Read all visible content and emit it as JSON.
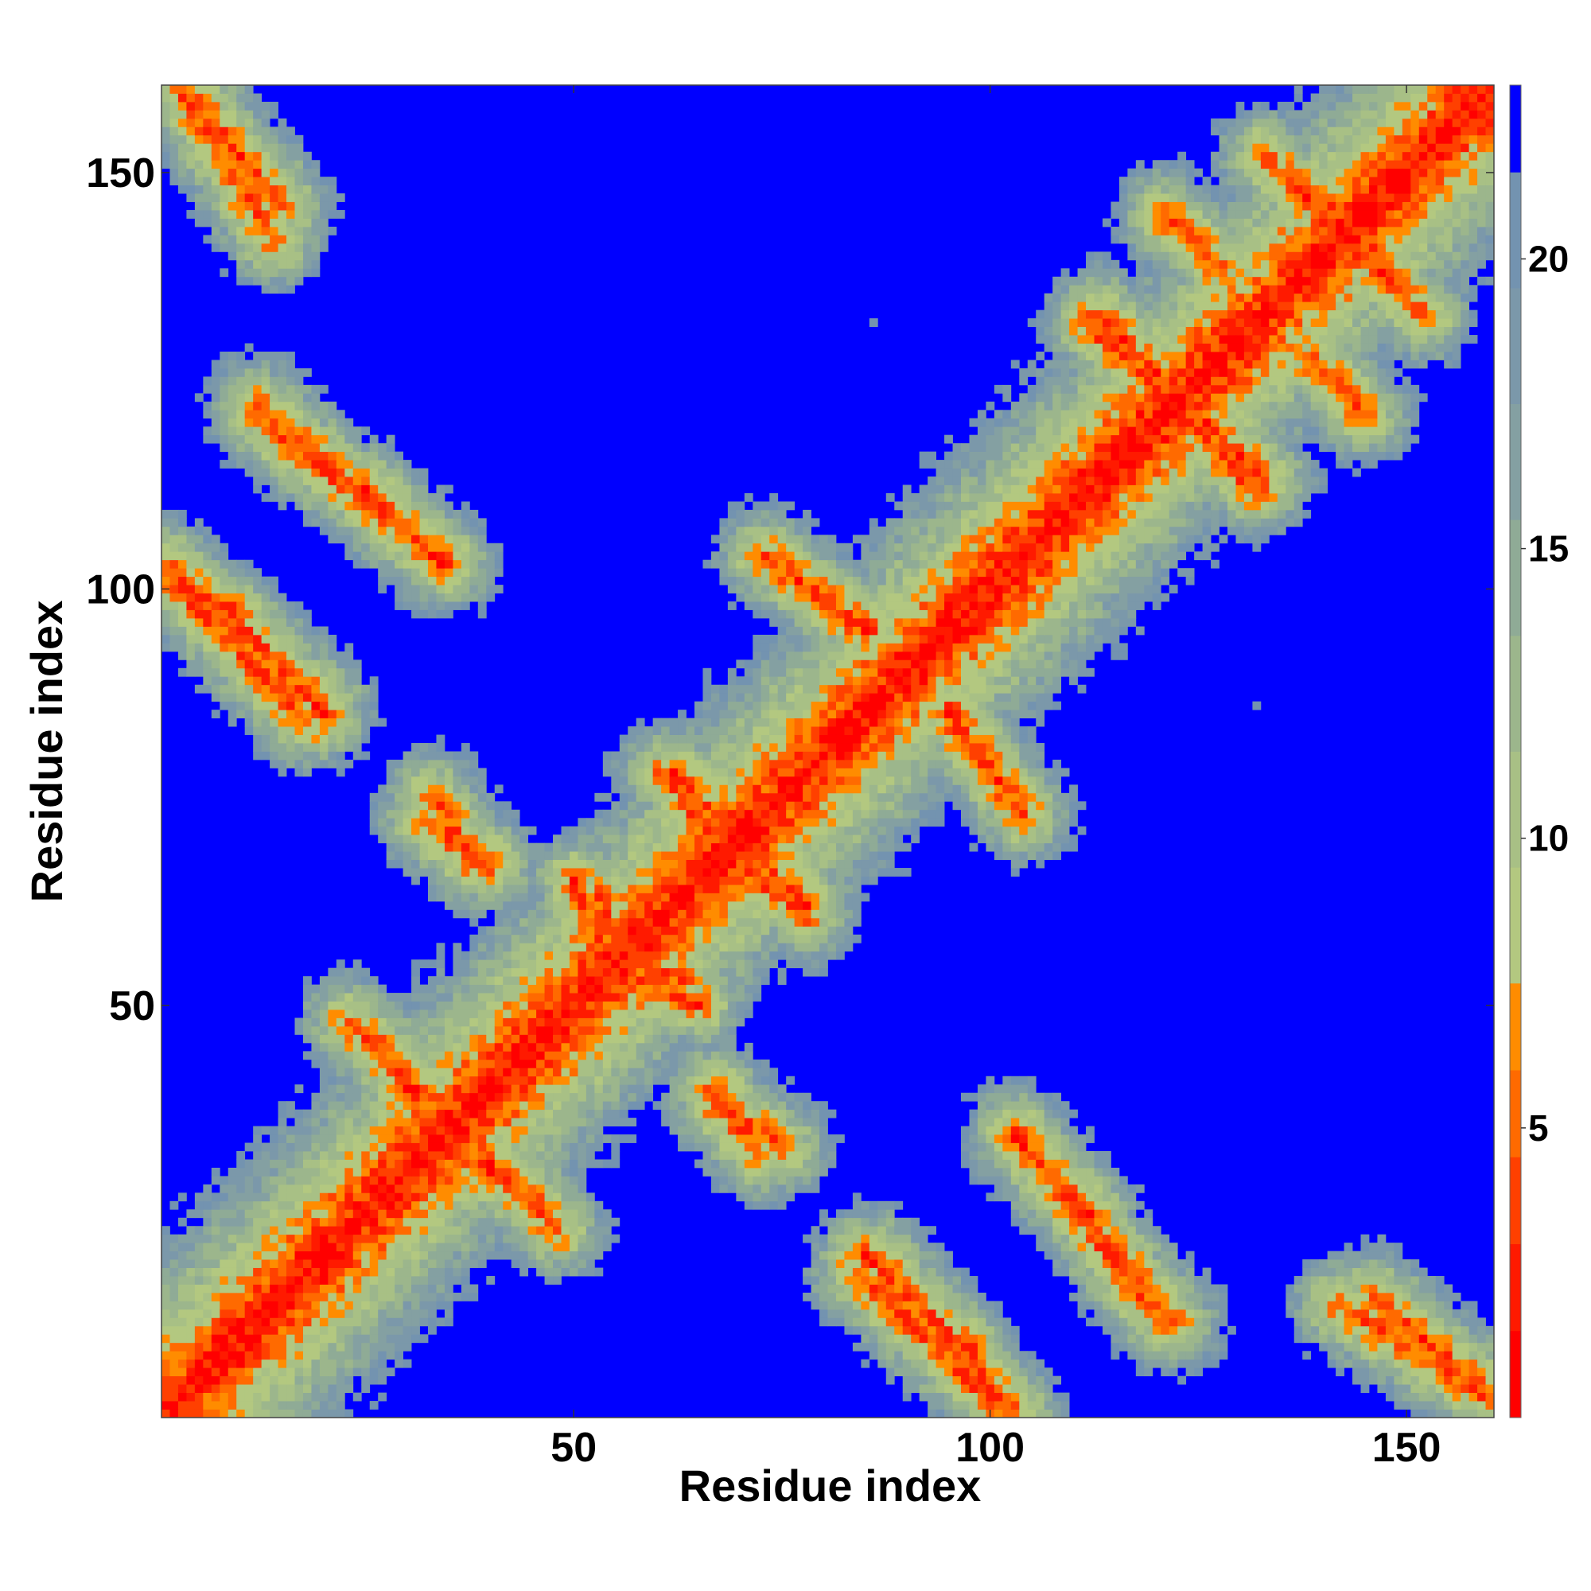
{
  "chart_data": {
    "type": "heatmap",
    "title": "",
    "xlabel": "Residue index",
    "ylabel": "Residue index",
    "x_range": [
      1,
      160
    ],
    "y_range": [
      1,
      160
    ],
    "x_ticks": [
      50,
      100,
      150
    ],
    "y_ticks": [
      50,
      100,
      150
    ],
    "n_residues": 160,
    "value_range": [
      0,
      23
    ],
    "colorbar": {
      "ticks": [
        5,
        10,
        15,
        20
      ],
      "levels": [
        {
          "max": 1.5,
          "color": "#ff0000"
        },
        {
          "max": 3.0,
          "color": "#ff1a00"
        },
        {
          "max": 4.5,
          "color": "#ff4000"
        },
        {
          "max": 6.0,
          "color": "#ff6a00"
        },
        {
          "max": 7.5,
          "color": "#ff8c00"
        },
        {
          "max": 9.5,
          "color": "#b3c880"
        },
        {
          "max": 11.5,
          "color": "#a8c085"
        },
        {
          "max": 13.5,
          "color": "#9cb68c"
        },
        {
          "max": 15.5,
          "color": "#8fab96"
        },
        {
          "max": 17.5,
          "color": "#84a0a2"
        },
        {
          "max": 19.5,
          "color": "#7b98aa"
        },
        {
          "max": 21.5,
          "color": "#7393b0"
        },
        {
          "max": 23.0,
          "color": "#0000ff"
        }
      ]
    },
    "structure": {
      "description_of_encoding": "",
      "diagonal_value": 1.0,
      "far_value": 23.0,
      "contact_bands": [
        {
          "i0": 3,
          "j0": 160,
          "i1": 15,
          "j1": 146
        },
        {
          "i0": 14,
          "j0": 119,
          "i1": 35,
          "j1": 103
        },
        {
          "i0": 1,
          "j0": 103,
          "i1": 20,
          "j1": 86
        },
        {
          "i0": 20,
          "j0": 85,
          "i1": 8,
          "j1": 98
        },
        {
          "i0": 33,
          "j0": 75,
          "i1": 38,
          "j1": 67
        },
        {
          "i0": 23,
          "j0": 48,
          "i1": 31,
          "j1": 40
        },
        {
          "i0": 30,
          "j0": 40,
          "i1": 40,
          "j1": 29
        },
        {
          "i0": 42,
          "j0": 30,
          "i1": 48,
          "j1": 23
        },
        {
          "i0": 53,
          "j0": 63,
          "i1": 58,
          "j1": 53
        },
        {
          "i0": 62,
          "j0": 78,
          "i1": 68,
          "j1": 72
        },
        {
          "i0": 68,
          "j0": 68,
          "i1": 78,
          "j1": 61
        },
        {
          "i0": 55,
          "j0": 54,
          "i1": 65,
          "j1": 50
        },
        {
          "i0": 67,
          "j0": 40,
          "i1": 72,
          "j1": 32
        },
        {
          "i0": 73,
          "j0": 104,
          "i1": 85,
          "j1": 95
        },
        {
          "i0": 95,
          "j0": 86,
          "i1": 103,
          "j1": 74
        },
        {
          "i0": 103,
          "j0": 34,
          "i1": 112,
          "j1": 25
        },
        {
          "i0": 115,
          "j0": 20,
          "i1": 122,
          "j1": 12
        },
        {
          "i0": 84,
          "j0": 18,
          "i1": 102,
          "j1": 1
        },
        {
          "i0": 142,
          "j0": 14,
          "i1": 160,
          "j1": 3
        },
        {
          "i0": 113,
          "j0": 133,
          "i1": 122,
          "j1": 124
        },
        {
          "i0": 122,
          "j0": 122,
          "i1": 132,
          "j1": 112
        },
        {
          "i0": 133,
          "j0": 152,
          "i1": 140,
          "j1": 145
        },
        {
          "i0": 145,
          "j0": 143,
          "i1": 150,
          "j1": 135
        },
        {
          "i0": 121,
          "j0": 145,
          "i1": 127,
          "j1": 139
        }
      ],
      "domain_blocks": [
        {
          "a0": 1,
          "a1": 160,
          "b0": 1,
          "b1": 160,
          "strength": 0
        }
      ]
    }
  }
}
